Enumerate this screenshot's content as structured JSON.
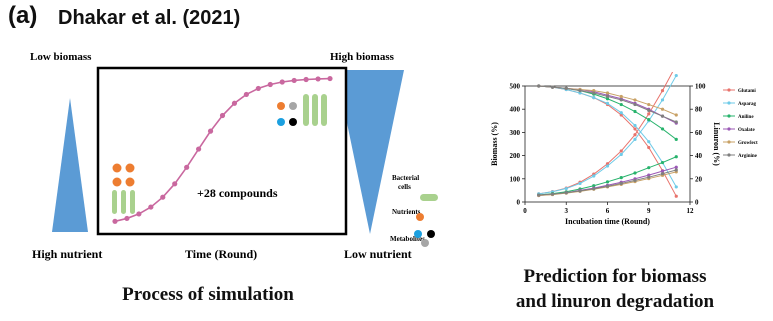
{
  "header": {
    "panel_label": "(a)",
    "title": "Dhakar et al. (2021)"
  },
  "simulation": {
    "low_biomass": "Low biomass",
    "high_biomass": "High biomass",
    "high_nutrient": "High nutrient",
    "low_nutrient": "Low nutrient",
    "xlabel": "Time (Round)",
    "compounds": "+28 compounds",
    "caption": "Process of simulation",
    "legend": {
      "bacterial_cells": "Bacterial cells",
      "nutrients": "Nutrients",
      "metabolites": "Metabolites"
    },
    "colors": {
      "curve": "#c9689f",
      "triangle": "#5b9bd5",
      "cells": "#a9d18e",
      "nutrients": "#ed7d31",
      "metabolite_blue": "#1ca0e0",
      "metabolite_black": "#000000",
      "metabolite_grey": "#a6a6a6"
    }
  },
  "chart_data": {
    "type": "line",
    "xlabel": "Incubation time (Round)",
    "ylabel_left": "Biomass (%)",
    "ylabel_right": "Linuron (%)",
    "xlim": [
      0,
      12
    ],
    "ylim_left": [
      0,
      500
    ],
    "ylim_right": [
      0,
      100
    ],
    "x_ticks": [
      "0",
      "3",
      "6",
      "9",
      "12"
    ],
    "y_left_ticks": [
      "0",
      "100",
      "200",
      "300",
      "400",
      "500"
    ],
    "y_right_ticks": [
      "0",
      "20",
      "40",
      "60",
      "80",
      "100"
    ],
    "legend_position": "right",
    "series": [
      {
        "name": "Glutami",
        "color": "#e8736c",
        "biomass": [
          [
            1,
            35
          ],
          [
            2,
            45
          ],
          [
            3,
            60
          ],
          [
            4,
            85
          ],
          [
            5,
            120
          ],
          [
            6,
            165
          ],
          [
            7,
            220
          ],
          [
            8,
            290
          ],
          [
            9,
            380
          ],
          [
            10,
            480
          ],
          [
            11,
            590
          ]
        ],
        "linuron": [
          [
            1,
            100
          ],
          [
            2,
            99
          ],
          [
            3,
            97
          ],
          [
            4,
            94
          ],
          [
            5,
            90
          ],
          [
            6,
            84
          ],
          [
            7,
            75
          ],
          [
            8,
            63
          ],
          [
            9,
            47
          ],
          [
            10,
            27
          ],
          [
            11,
            5
          ]
        ]
      },
      {
        "name": "Asparag",
        "color": "#6ecbe8",
        "biomass": [
          [
            1,
            35
          ],
          [
            2,
            44
          ],
          [
            3,
            58
          ],
          [
            4,
            80
          ],
          [
            5,
            112
          ],
          [
            6,
            155
          ],
          [
            7,
            205
          ],
          [
            8,
            270
          ],
          [
            9,
            350
          ],
          [
            10,
            440
          ],
          [
            11,
            545
          ]
        ],
        "linuron": [
          [
            1,
            100
          ],
          [
            2,
            99
          ],
          [
            3,
            97
          ],
          [
            4,
            94
          ],
          [
            5,
            90
          ],
          [
            6,
            85
          ],
          [
            7,
            77
          ],
          [
            8,
            66
          ],
          [
            9,
            52
          ],
          [
            10,
            34
          ],
          [
            11,
            13
          ]
        ]
      },
      {
        "name": "Aniline",
        "color": "#27b36c",
        "biomass": [
          [
            1,
            30
          ],
          [
            2,
            36
          ],
          [
            3,
            44
          ],
          [
            4,
            56
          ],
          [
            5,
            70
          ],
          [
            6,
            87
          ],
          [
            7,
            105
          ],
          [
            8,
            125
          ],
          [
            9,
            148
          ],
          [
            10,
            170
          ],
          [
            11,
            195
          ]
        ],
        "linuron": [
          [
            1,
            100
          ],
          [
            2,
            99
          ],
          [
            3,
            98
          ],
          [
            4,
            96
          ],
          [
            5,
            93
          ],
          [
            6,
            89
          ],
          [
            7,
            84
          ],
          [
            8,
            78
          ],
          [
            9,
            71
          ],
          [
            10,
            63
          ],
          [
            11,
            54
          ]
        ]
      },
      {
        "name": "Oxalate",
        "color": "#9b59b6",
        "biomass": [
          [
            1,
            28
          ],
          [
            2,
            33
          ],
          [
            3,
            40
          ],
          [
            4,
            50
          ],
          [
            5,
            60
          ],
          [
            6,
            72
          ],
          [
            7,
            85
          ],
          [
            8,
            100
          ],
          [
            9,
            116
          ],
          [
            10,
            133
          ],
          [
            11,
            150
          ]
        ],
        "linuron": [
          [
            1,
            100
          ],
          [
            2,
            99
          ],
          [
            3,
            98
          ],
          [
            4,
            97
          ],
          [
            5,
            95
          ],
          [
            6,
            92
          ],
          [
            7,
            89
          ],
          [
            8,
            85
          ],
          [
            9,
            80
          ],
          [
            10,
            74
          ],
          [
            11,
            68
          ]
        ]
      },
      {
        "name": "Growlect",
        "color": "#c8a165",
        "biomass": [
          [
            1,
            28
          ],
          [
            2,
            32
          ],
          [
            3,
            38
          ],
          [
            4,
            46
          ],
          [
            5,
            55
          ],
          [
            6,
            65
          ],
          [
            7,
            76
          ],
          [
            8,
            88
          ],
          [
            9,
            101
          ],
          [
            10,
            115
          ],
          [
            11,
            130
          ]
        ],
        "linuron": [
          [
            1,
            100
          ],
          [
            2,
            99
          ],
          [
            3,
            98
          ],
          [
            4,
            97
          ],
          [
            5,
            96
          ],
          [
            6,
            94
          ],
          [
            7,
            91
          ],
          [
            8,
            88
          ],
          [
            9,
            84
          ],
          [
            10,
            80
          ],
          [
            11,
            75
          ]
        ]
      },
      {
        "name": "Arginine",
        "color": "#7f7f7f",
        "biomass": [
          [
            1,
            30
          ],
          [
            2,
            34
          ],
          [
            3,
            40
          ],
          [
            4,
            48
          ],
          [
            5,
            57
          ],
          [
            6,
            68
          ],
          [
            7,
            80
          ],
          [
            8,
            93
          ],
          [
            9,
            107
          ],
          [
            10,
            122
          ],
          [
            11,
            138
          ]
        ],
        "linuron": [
          [
            1,
            100
          ],
          [
            2,
            99
          ],
          [
            3,
            98
          ],
          [
            4,
            96
          ],
          [
            5,
            94
          ],
          [
            6,
            91
          ],
          [
            7,
            88
          ],
          [
            8,
            84
          ],
          [
            9,
            79
          ],
          [
            10,
            74
          ],
          [
            11,
            69
          ]
        ]
      }
    ]
  },
  "prediction": {
    "caption_line1": "Prediction for biomass",
    "caption_line2": "and linuron degradation"
  }
}
